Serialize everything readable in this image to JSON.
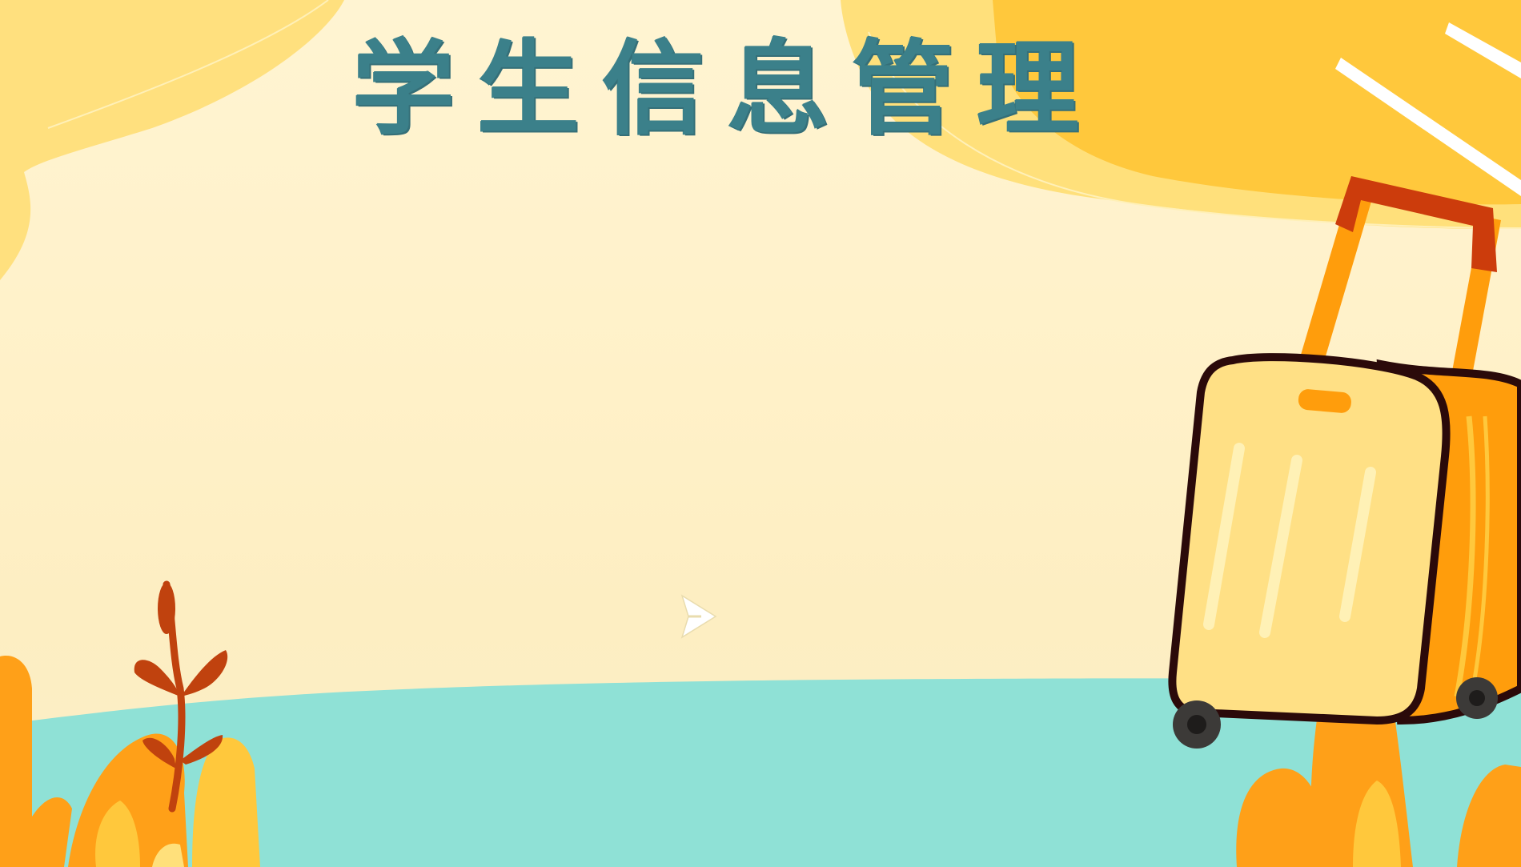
{
  "slide": {
    "title": "学生信息管理"
  },
  "controls": {
    "play_icon": "play-arrow-icon"
  },
  "colors": {
    "background": "#fff3cf",
    "title": "#3b808a",
    "water": "#8fe1d6",
    "sun": "#ffc83c",
    "suitcase_body": "#ffe085",
    "suitcase_side": "#ff9d0c",
    "handle_top": "#cc3c0c",
    "plant_stem": "#c0420e",
    "bushes": "#ffa018"
  }
}
